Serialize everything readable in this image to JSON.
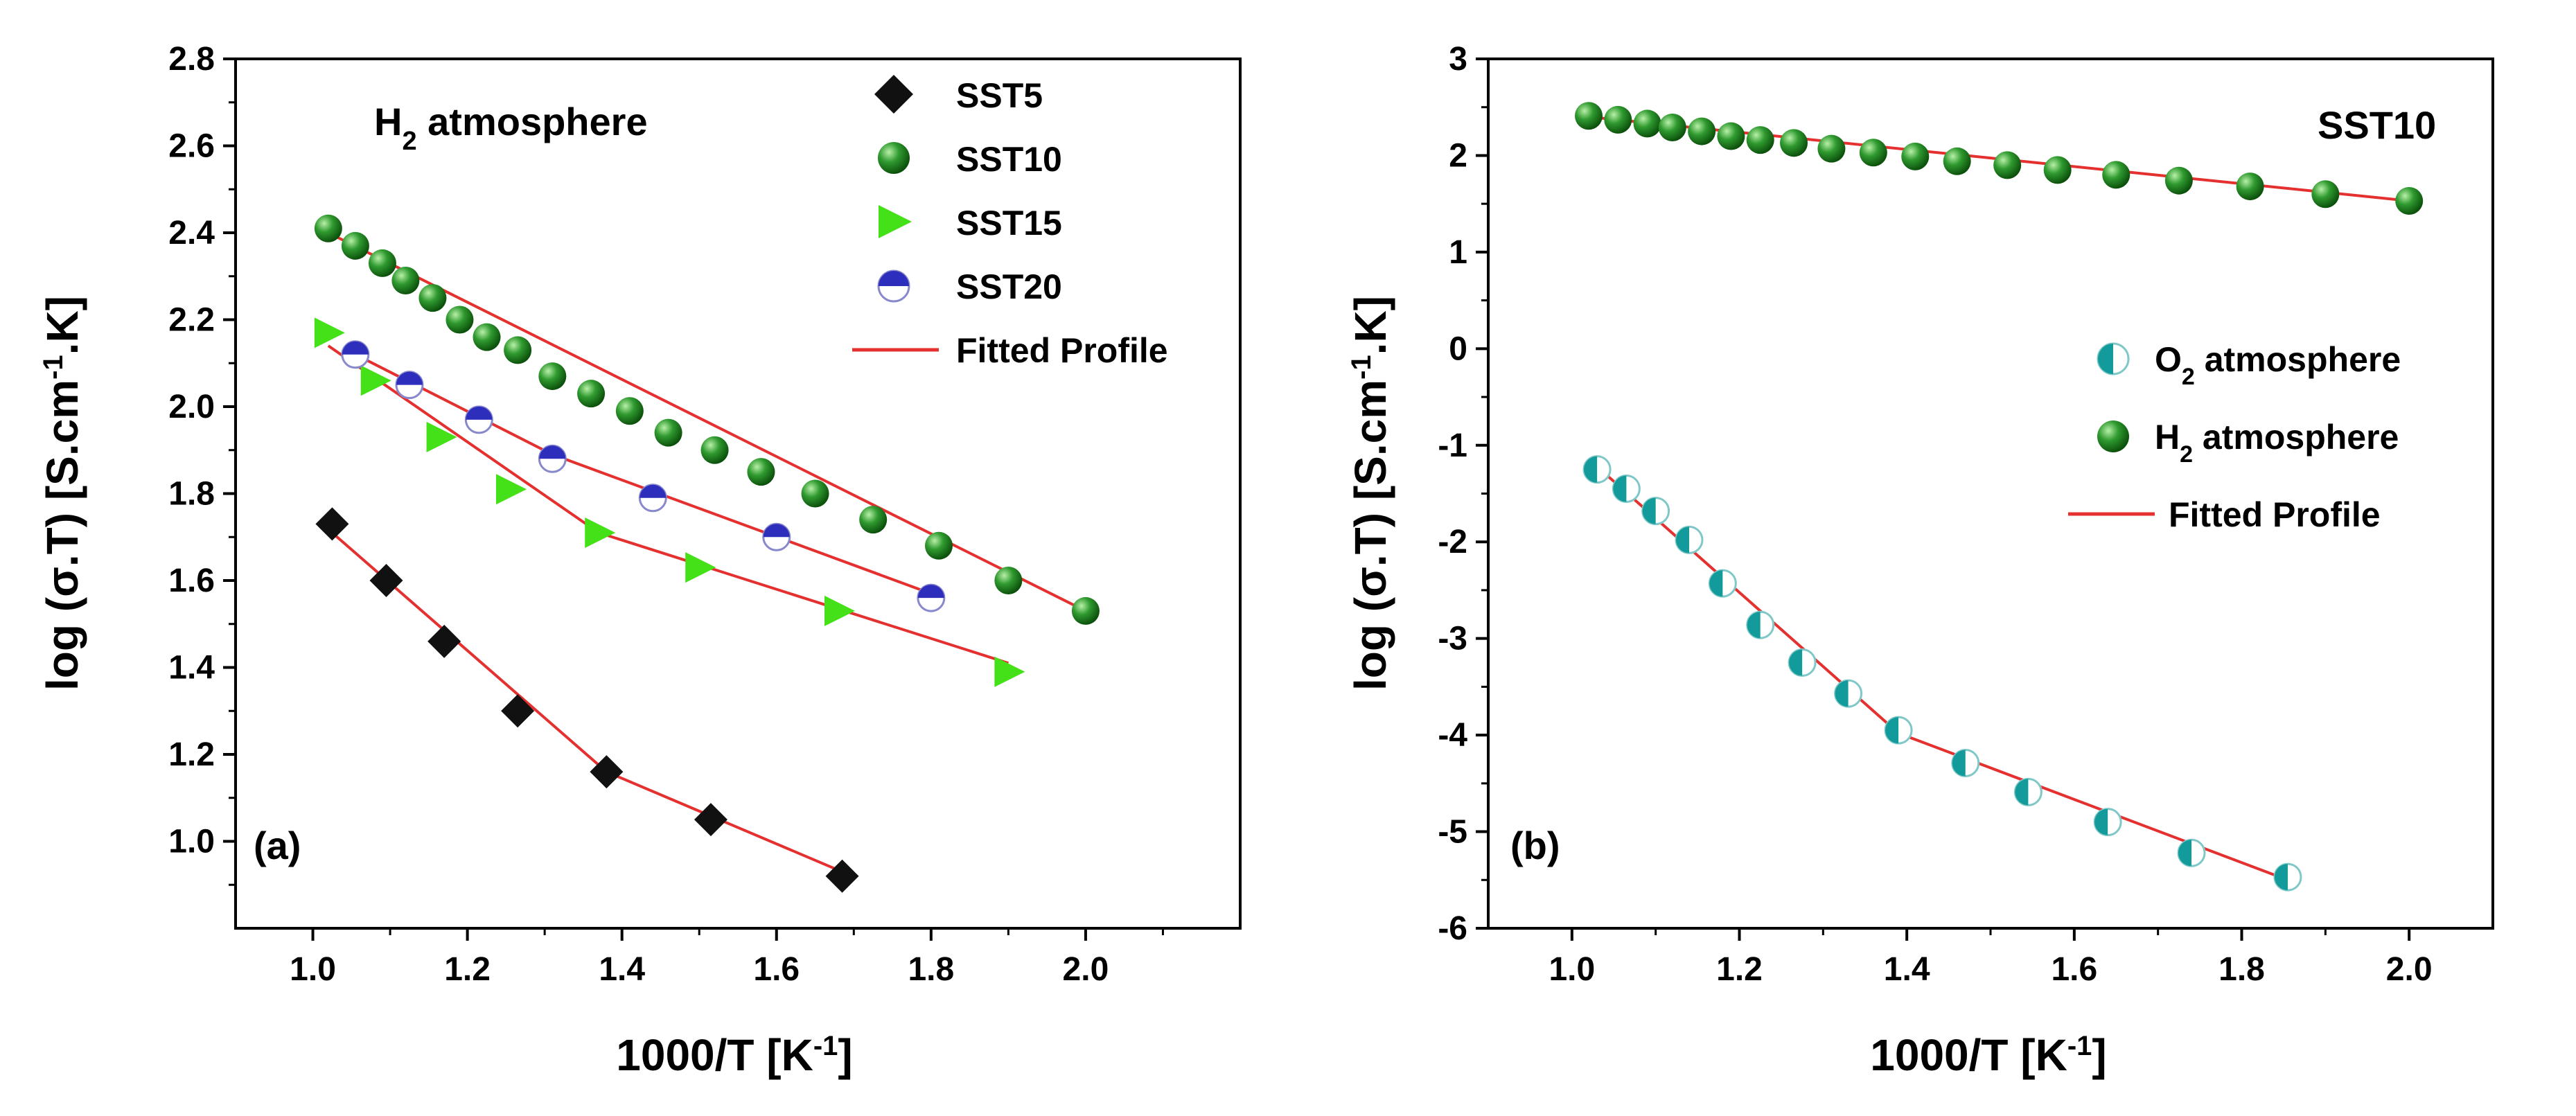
{
  "colors": {
    "fit": "#e53030",
    "sst5": "#111111",
    "sst10": "#1f8a1f",
    "sst15": "#44e018",
    "sst20": "#2e2ebc",
    "o2": "#139a9a"
  },
  "chart_data": [
    {
      "type": "scatter",
      "panel": "(a)",
      "title": "H2 atmosphere",
      "title_main": "H",
      "title_sub": "2",
      "title_rest": " atmosphere",
      "xlabel": "1000/T [K-1]",
      "xlabel_parts": {
        "main": "1000/T [K",
        "sup": "-1",
        "end": "]"
      },
      "ylabel": "log (σ.T) [S.cm-1.K]",
      "ylabel_parts": {
        "main": "log (σ.T) [S.cm",
        "sup": "-1",
        "end": ".K]"
      },
      "xlim": [
        0.9,
        2.2
      ],
      "ylim": [
        0.8,
        2.8
      ],
      "xticks": [
        "1.0",
        "1.2",
        "1.4",
        "1.6",
        "1.8",
        "2.0"
      ],
      "xtick_values": [
        1.0,
        1.2,
        1.4,
        1.6,
        1.8,
        2.0
      ],
      "yticks": [
        "1.0",
        "1.2",
        "1.4",
        "1.6",
        "1.8",
        "2.0",
        "2.2",
        "2.4",
        "2.6",
        "2.8"
      ],
      "ytick_values": [
        1.0,
        1.2,
        1.4,
        1.6,
        1.8,
        2.0,
        2.2,
        2.4,
        2.6,
        2.8
      ],
      "legend_position": "top-right",
      "series": [
        {
          "name": "SST5",
          "marker": "diamond",
          "color_key": "sst5",
          "x": [
            1.025,
            1.095,
            1.17,
            1.265,
            1.38,
            1.515,
            1.685
          ],
          "y": [
            1.73,
            1.6,
            1.46,
            1.3,
            1.16,
            1.05,
            0.92
          ],
          "fit_x": [
            1.025,
            1.38,
            1.685
          ],
          "fit_y": [
            1.71,
            1.16,
            0.93
          ]
        },
        {
          "name": "SST10",
          "marker": "sphere",
          "color_key": "sst10",
          "x": [
            1.02,
            1.055,
            1.09,
            1.12,
            1.155,
            1.19,
            1.225,
            1.265,
            1.31,
            1.36,
            1.41,
            1.46,
            1.52,
            1.58,
            1.65,
            1.725,
            1.81,
            1.9,
            2.0
          ],
          "y": [
            2.41,
            2.37,
            2.33,
            2.29,
            2.25,
            2.2,
            2.16,
            2.13,
            2.07,
            2.03,
            1.99,
            1.94,
            1.9,
            1.85,
            1.8,
            1.74,
            1.68,
            1.6,
            1.53
          ],
          "fit_x": [
            1.02,
            2.0
          ],
          "fit_y": [
            2.4,
            1.53
          ]
        },
        {
          "name": "SST15",
          "marker": "triangle",
          "color_key": "sst15",
          "x": [
            1.02,
            1.08,
            1.165,
            1.255,
            1.37,
            1.5,
            1.68,
            1.9
          ],
          "y": [
            2.17,
            2.06,
            1.93,
            1.81,
            1.71,
            1.63,
            1.53,
            1.39
          ],
          "fit_x": [
            1.02,
            1.37,
            1.9
          ],
          "fit_y": [
            2.14,
            1.71,
            1.41
          ]
        },
        {
          "name": "SST20",
          "marker": "halfcircle",
          "color_key": "sst20",
          "x": [
            1.055,
            1.125,
            1.215,
            1.31,
            1.44,
            1.6,
            1.8
          ],
          "y": [
            2.12,
            2.05,
            1.97,
            1.88,
            1.79,
            1.7,
            1.56
          ],
          "fit_x": [
            1.055,
            1.31,
            1.8
          ],
          "fit_y": [
            2.12,
            1.89,
            1.57
          ]
        }
      ],
      "fit_label": "Fitted Profile"
    },
    {
      "type": "scatter",
      "panel": "(b)",
      "title": "SST10",
      "xlabel": "1000/T [K-1]",
      "xlabel_parts": {
        "main": "1000/T [K",
        "sup": "-1",
        "end": "]"
      },
      "ylabel": "log (σ.T) [S.cm-1.K]",
      "ylabel_parts": {
        "main": "log (σ.T) [S.cm",
        "sup": "-1",
        "end": ".K]"
      },
      "xlim": [
        0.9,
        2.1
      ],
      "ylim": [
        -6,
        3
      ],
      "xticks": [
        "1.0",
        "1.2",
        "1.4",
        "1.6",
        "1.8",
        "2.0"
      ],
      "xtick_values": [
        1.0,
        1.2,
        1.4,
        1.6,
        1.8,
        2.0
      ],
      "yticks": [
        "-6",
        "-5",
        "-4",
        "-3",
        "-2",
        "-1",
        "0",
        "1",
        "2",
        "3"
      ],
      "ytick_values": [
        -6,
        -5,
        -4,
        -3,
        -2,
        -1,
        0,
        1,
        2,
        3
      ],
      "legend_position": "center-right",
      "series": [
        {
          "name": "O2 atmosphere",
          "name_main": "O",
          "name_sub": "2",
          "name_rest": " atmosphere",
          "marker": "halfcircle-v",
          "color_key": "o2",
          "x": [
            1.03,
            1.065,
            1.1,
            1.14,
            1.18,
            1.225,
            1.275,
            1.33,
            1.39,
            1.47,
            1.545,
            1.64,
            1.74,
            1.855
          ],
          "y": [
            -1.25,
            -1.45,
            -1.68,
            -1.98,
            -2.43,
            -2.86,
            -3.25,
            -3.57,
            -3.95,
            -4.29,
            -4.59,
            -4.9,
            -5.22,
            -5.47
          ],
          "fit_x": [
            1.03,
            1.39,
            1.855
          ],
          "fit_y": [
            -1.22,
            -3.98,
            -5.5
          ]
        },
        {
          "name": "H2 atmosphere",
          "name_main": "H",
          "name_sub": "2",
          "name_rest": " atmosphere",
          "marker": "sphere",
          "color_key": "sst10",
          "x": [
            1.02,
            1.055,
            1.09,
            1.12,
            1.155,
            1.19,
            1.225,
            1.265,
            1.31,
            1.36,
            1.41,
            1.46,
            1.52,
            1.58,
            1.65,
            1.725,
            1.81,
            1.9,
            2.0
          ],
          "y": [
            2.41,
            2.37,
            2.33,
            2.29,
            2.25,
            2.2,
            2.16,
            2.13,
            2.07,
            2.03,
            1.99,
            1.94,
            1.9,
            1.85,
            1.8,
            1.74,
            1.68,
            1.6,
            1.53
          ],
          "fit_x": [
            1.02,
            2.0
          ],
          "fit_y": [
            2.4,
            1.53
          ]
        }
      ],
      "fit_label": "Fitted Profile"
    }
  ]
}
